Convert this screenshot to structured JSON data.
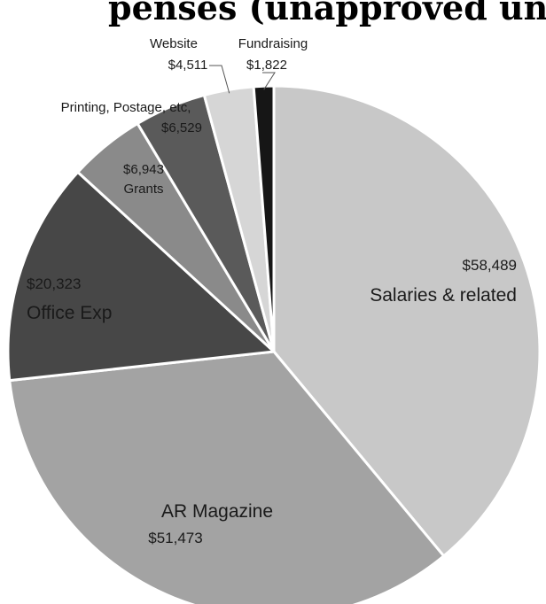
{
  "title_fragment": "penses (unapproved unaudited)",
  "chart_data": {
    "type": "pie",
    "title": "",
    "legend": "none",
    "slices": [
      {
        "name": "Salaries & related",
        "value": 58489,
        "label": "$58,489",
        "color": "#c8c8c8"
      },
      {
        "name": "AR Magazine",
        "value": 51473,
        "label": "$51,473",
        "color": "#a3a3a3"
      },
      {
        "name": "Office Exp",
        "value": 20323,
        "label": "$20,323",
        "color": "#474747"
      },
      {
        "name": "Grants",
        "value": 6943,
        "label": "$6,943",
        "color": "#8a8a8a"
      },
      {
        "name": "Printing, Postage, etc,",
        "value": 6529,
        "label": "$6,529",
        "color": "#5a5a5a"
      },
      {
        "name": "Website",
        "value": 4511,
        "label": "$4,511",
        "color": "#d6d6d6"
      },
      {
        "name": "Fundraising",
        "value": 1822,
        "label": "$1,822",
        "color": "#161616"
      }
    ]
  }
}
